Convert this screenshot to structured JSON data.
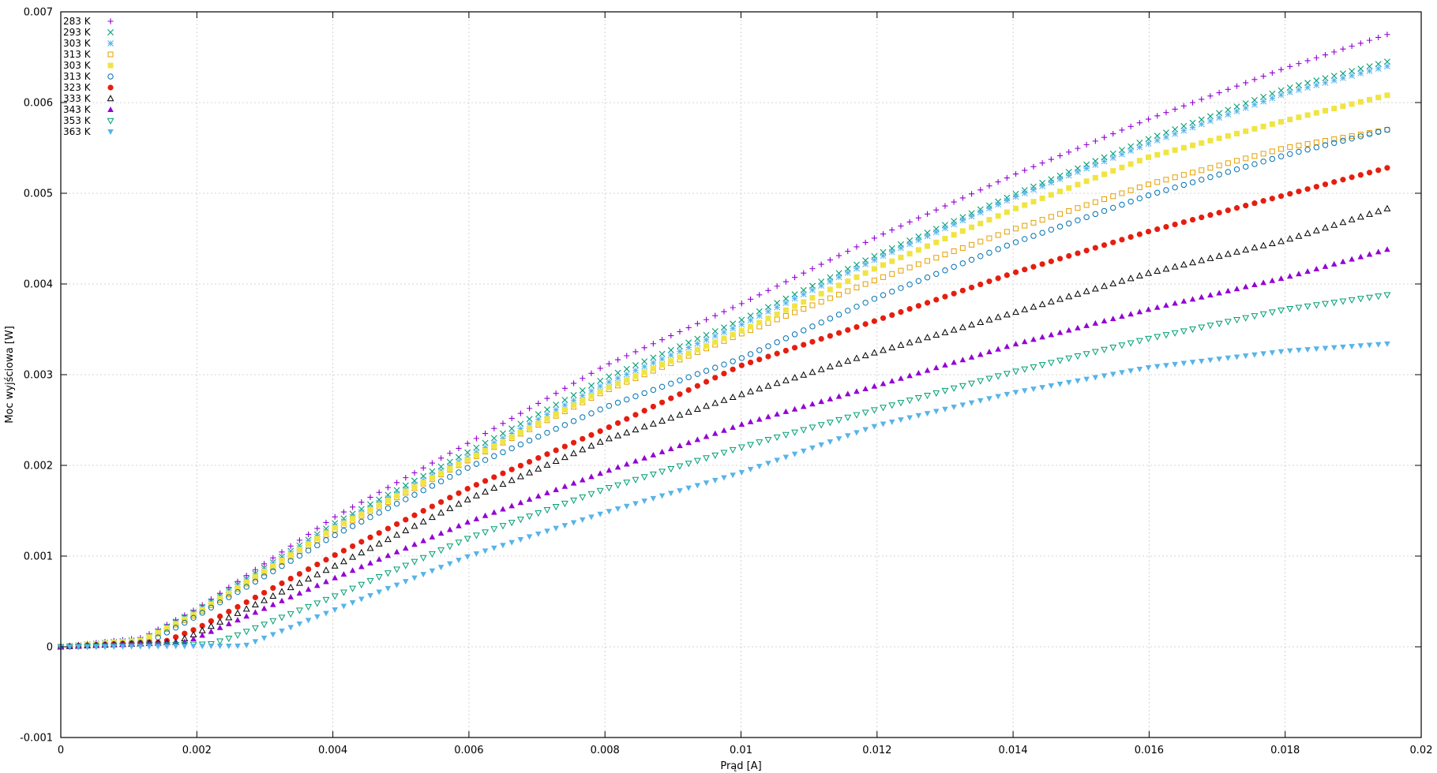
{
  "chart_data": {
    "type": "scatter",
    "title": "",
    "xlabel": "Prąd [A]",
    "ylabel": "Moc wyjściowa [W]",
    "xlim": [
      0,
      0.02
    ],
    "ylim": [
      -0.001,
      0.007
    ],
    "grid": true,
    "legend_position": "top-left",
    "x_ticks": [
      0,
      0.002,
      0.004,
      0.006,
      0.008,
      0.01,
      0.012,
      0.014,
      0.016,
      0.018,
      0.02
    ],
    "x_tick_labels": [
      "0",
      "0.002",
      "0.004",
      "0.006",
      "0.008",
      "0.01",
      "0.012",
      "0.014",
      "0.016",
      "0.018",
      "0.02"
    ],
    "y_ticks": [
      -0.001,
      0,
      0.001,
      0.002,
      0.003,
      0.004,
      0.005,
      0.006,
      0.007
    ],
    "y_tick_labels": [
      "-0.001",
      "0",
      "0.001",
      "0.002",
      "0.003",
      "0.004",
      "0.005",
      "0.006",
      "0.007"
    ],
    "series": [
      {
        "name": "283 K",
        "marker": "plus",
        "color": "#9400d3",
        "x": [
          0,
          0.0012,
          0.002,
          0.004,
          0.006,
          0.008,
          0.01,
          0.012,
          0.014,
          0.016,
          0.018,
          0.0195
        ],
        "y": [
          0,
          0.0001,
          0.00042,
          0.00142,
          0.00225,
          0.0031,
          0.00378,
          0.00452,
          0.0052,
          0.00582,
          0.00638,
          0.00675
        ]
      },
      {
        "name": "293 K",
        "marker": "cross",
        "color": "#009e73",
        "x": [
          0,
          0.0012,
          0.002,
          0.004,
          0.006,
          0.008,
          0.01,
          0.012,
          0.014,
          0.016,
          0.018,
          0.0195
        ],
        "y": [
          0,
          8e-05,
          0.0004,
          0.00135,
          0.00215,
          0.00296,
          0.0036,
          0.00432,
          0.00498,
          0.0056,
          0.00615,
          0.00645
        ]
      },
      {
        "name": "303 K",
        "marker": "star",
        "color": "#56b4e9",
        "x": [
          0,
          0.0012,
          0.002,
          0.004,
          0.006,
          0.008,
          0.01,
          0.012,
          0.014,
          0.016,
          0.018,
          0.0195
        ],
        "y": [
          0,
          7e-05,
          0.00038,
          0.00132,
          0.0021,
          0.0029,
          0.00355,
          0.00428,
          0.00495,
          0.00555,
          0.0061,
          0.0064
        ]
      },
      {
        "name": "313 K",
        "marker": "open-square",
        "color": "#e69f00",
        "x": [
          0,
          0.0012,
          0.002,
          0.004,
          0.006,
          0.008,
          0.01,
          0.012,
          0.014,
          0.016,
          0.018,
          0.0195
        ],
        "y": [
          0,
          6e-05,
          0.00036,
          0.00128,
          0.00206,
          0.00282,
          0.00345,
          0.00405,
          0.0046,
          0.0051,
          0.0055,
          0.0057
        ]
      },
      {
        "name": "303 K",
        "marker": "filled-square",
        "color": "#f0e442",
        "x": [
          0,
          0.0012,
          0.002,
          0.004,
          0.006,
          0.008,
          0.01,
          0.012,
          0.014,
          0.016,
          0.018,
          0.0195
        ],
        "y": [
          0,
          7e-05,
          0.00037,
          0.0013,
          0.00207,
          0.00284,
          0.00348,
          0.00418,
          0.00482,
          0.0054,
          0.0058,
          0.00608
        ]
      },
      {
        "name": "313 K",
        "marker": "open-circle",
        "color": "#0072b2",
        "x": [
          0,
          0.0013,
          0.002,
          0.004,
          0.006,
          0.008,
          0.01,
          0.012,
          0.014,
          0.016,
          0.018,
          0.0195
        ],
        "y": [
          0,
          5e-05,
          0.00034,
          0.00122,
          0.00198,
          0.00264,
          0.00318,
          0.00385,
          0.00445,
          0.00498,
          0.00542,
          0.0057
        ]
      },
      {
        "name": "323 K",
        "marker": "filled-circle",
        "color": "#e51e10",
        "x": [
          0,
          0.0015,
          0.002,
          0.004,
          0.006,
          0.008,
          0.01,
          0.012,
          0.014,
          0.016,
          0.018,
          0.0195
        ],
        "y": [
          0,
          5e-05,
          0.0002,
          0.001,
          0.00175,
          0.0024,
          0.0031,
          0.0036,
          0.00412,
          0.00458,
          0.00498,
          0.00528
        ]
      },
      {
        "name": "333 K",
        "marker": "open-triangle",
        "color": "#000000",
        "x": [
          0,
          0.0017,
          0.002,
          0.004,
          0.006,
          0.008,
          0.01,
          0.012,
          0.014,
          0.016,
          0.018,
          0.0195
        ],
        "y": [
          0,
          5e-05,
          0.00015,
          0.00088,
          0.00163,
          0.00228,
          0.00278,
          0.00325,
          0.00368,
          0.00412,
          0.00448,
          0.00483
        ]
      },
      {
        "name": "343 K",
        "marker": "filled-triangle",
        "color": "#9400d3",
        "x": [
          0,
          0.0018,
          0.002,
          0.004,
          0.006,
          0.008,
          0.01,
          0.012,
          0.014,
          0.016,
          0.018,
          0.0195
        ],
        "y": [
          0,
          5e-05,
          0.0001,
          0.00075,
          0.00138,
          0.00193,
          0.00245,
          0.00288,
          0.00333,
          0.00372,
          0.00407,
          0.00438
        ]
      },
      {
        "name": "353 K",
        "marker": "open-inverted-triangle",
        "color": "#009e73",
        "x": [
          0,
          0.0022,
          0.0025,
          0.004,
          0.006,
          0.008,
          0.01,
          0.012,
          0.014,
          0.016,
          0.018,
          0.0195
        ],
        "y": [
          0,
          3e-05,
          0.0001,
          0.00055,
          0.0012,
          0.00174,
          0.0022,
          0.00262,
          0.00303,
          0.0034,
          0.00372,
          0.00388
        ]
      },
      {
        "name": "363 K",
        "marker": "filled-inverted-triangle",
        "color": "#56b4e9",
        "x": [
          0,
          0.0027,
          0.003,
          0.004,
          0.006,
          0.008,
          0.01,
          0.012,
          0.014,
          0.016,
          0.018,
          0.0195
        ],
        "y": [
          0,
          1e-05,
          0.0001,
          0.0004,
          0.001,
          0.00148,
          0.00192,
          0.00244,
          0.0028,
          0.00308,
          0.00326,
          0.00334
        ]
      }
    ]
  }
}
